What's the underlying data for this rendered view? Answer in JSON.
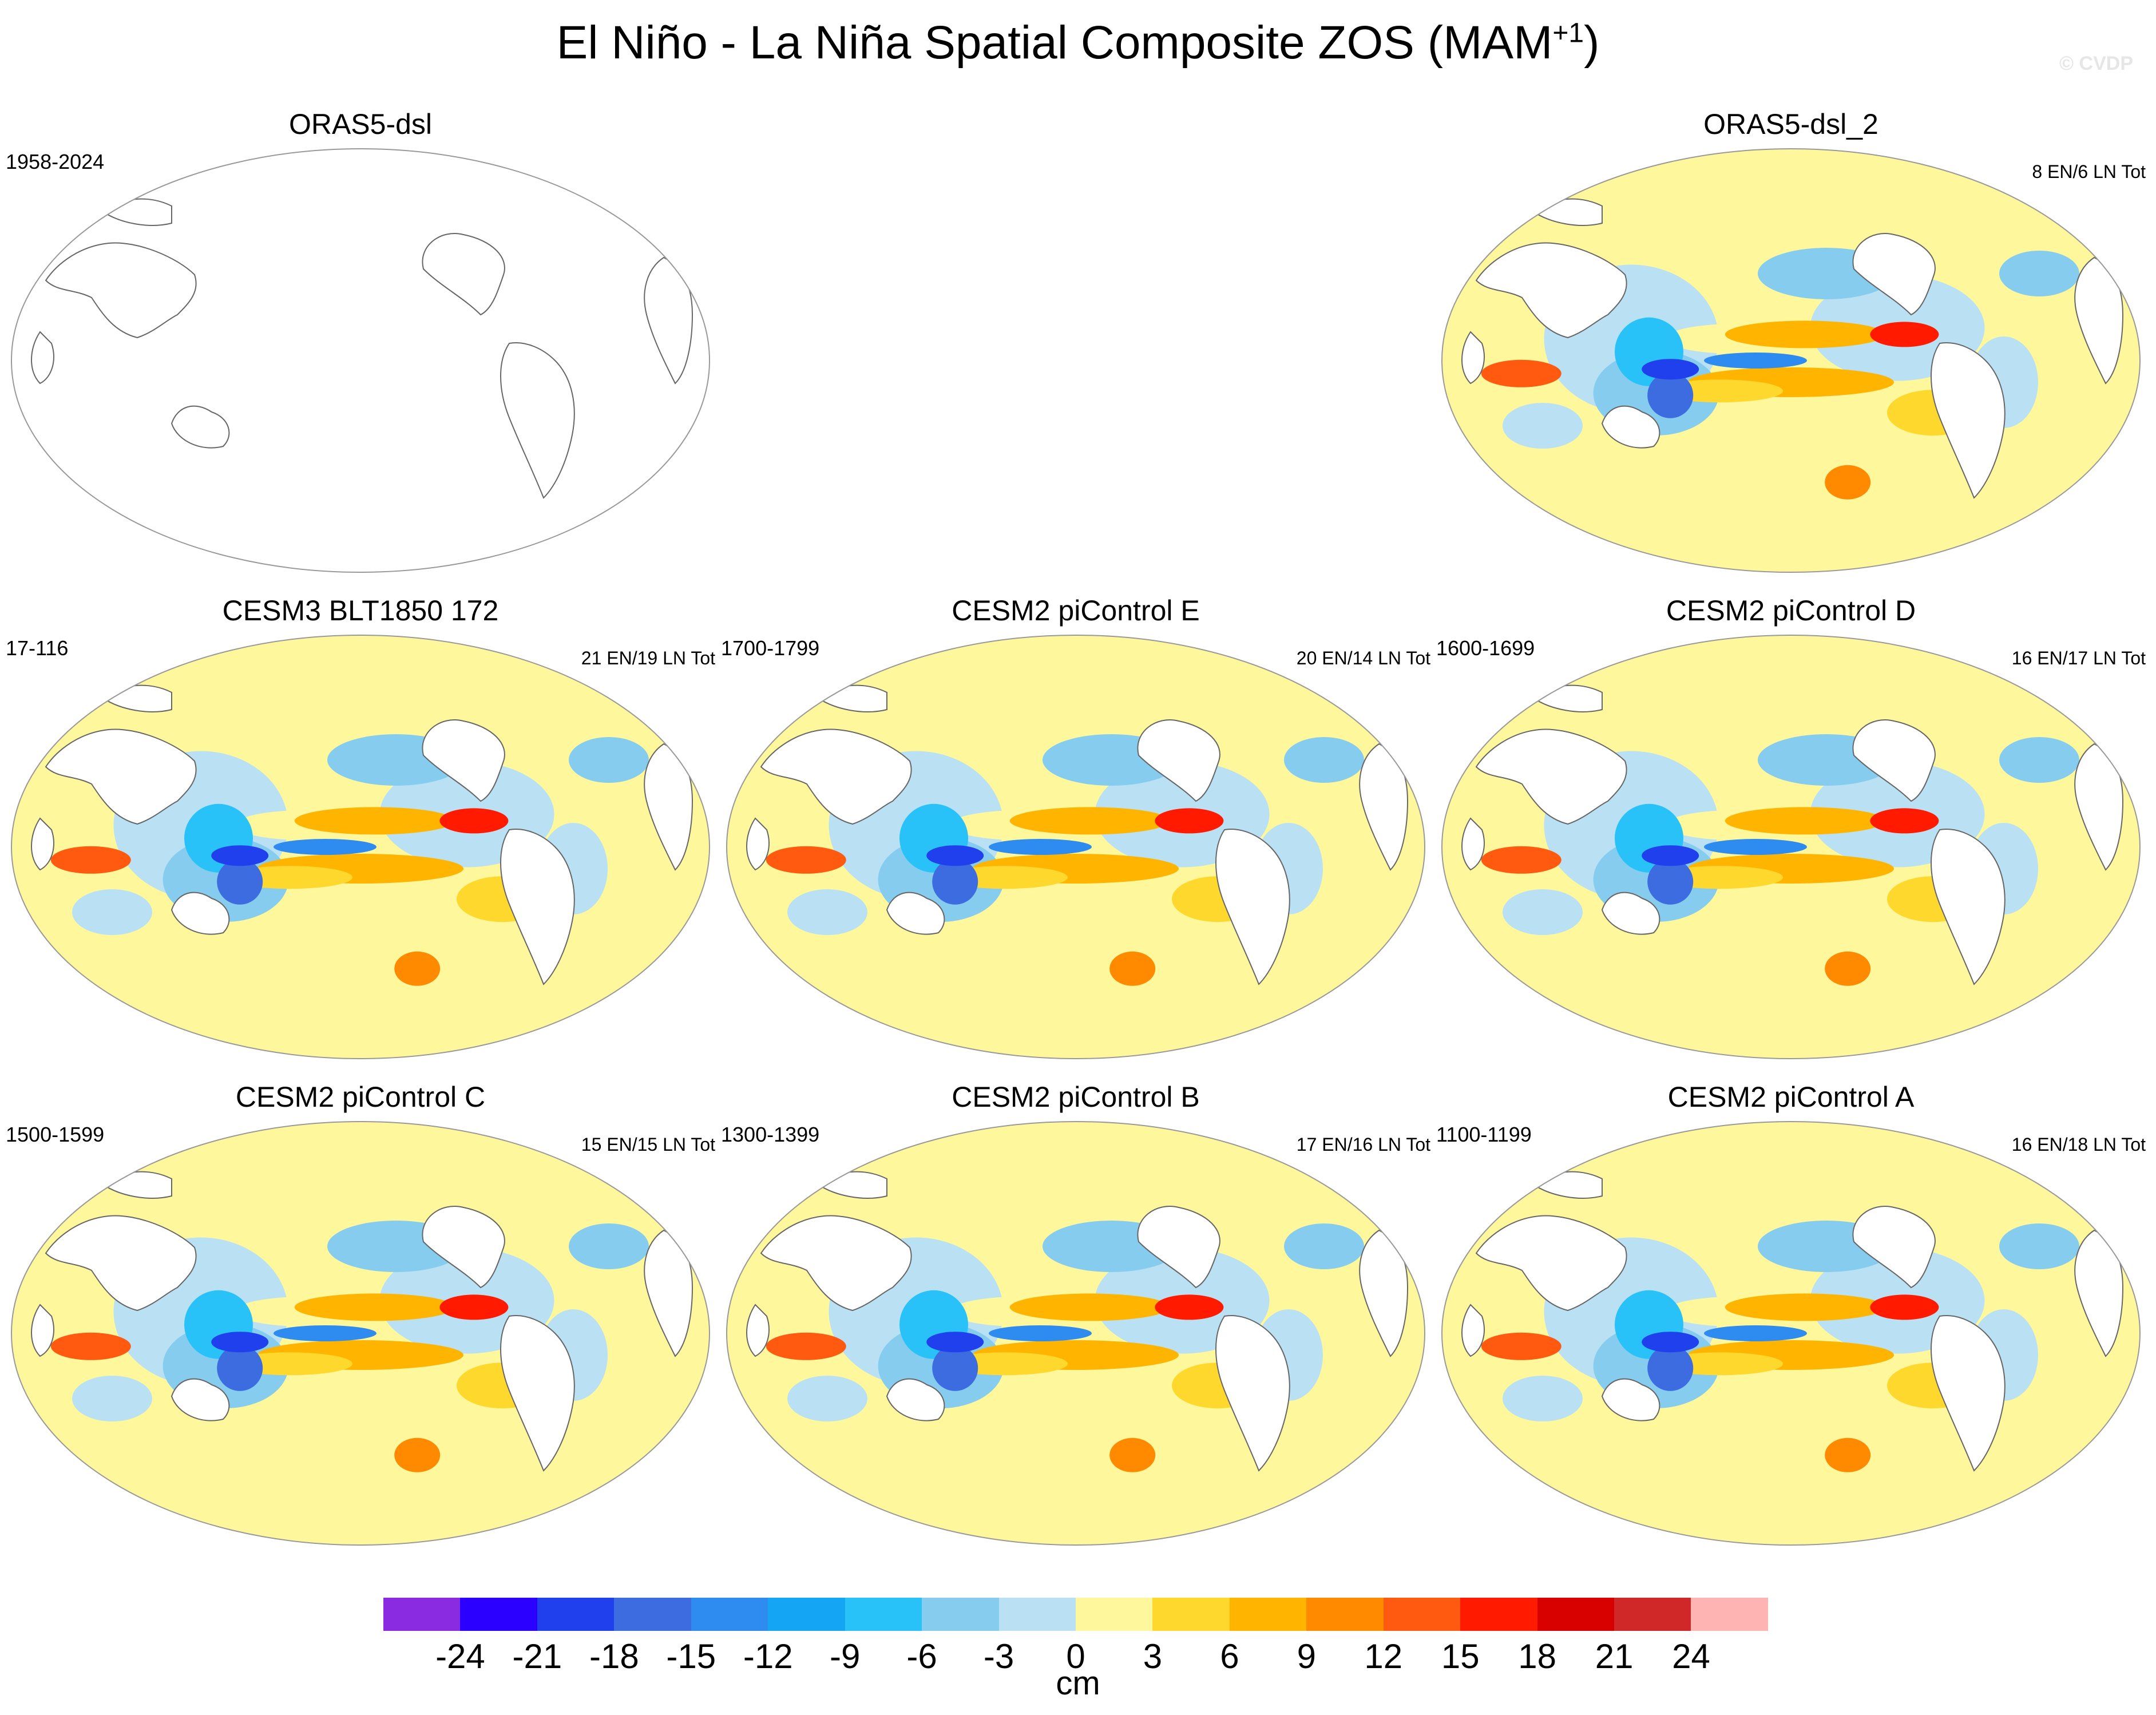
{
  "title": "El Niño - La Niña Spatial Composite ZOS (MAM",
  "title_sup": "+1",
  "title_close": ")",
  "watermark": "© CVDP",
  "panels": [
    {
      "title": "ORAS5-dsl",
      "left_label": "1958-2024",
      "right_label": "",
      "filled": false
    },
    {
      "title": "ORAS5-dsl_2",
      "left_label": "",
      "right_label": "8 EN/6 LN Tot",
      "filled": true
    },
    {
      "title": "CESM3 BLT1850 172",
      "left_label": "17-116",
      "right_label": "21 EN/19 LN Tot",
      "filled": true
    },
    {
      "title": "CESM2 piControl E",
      "left_label": "1700-1799",
      "right_label": "20 EN/14 LN Tot",
      "filled": true
    },
    {
      "title": "CESM2 piControl D",
      "left_label": "1600-1699",
      "right_label": "16 EN/17 LN Tot",
      "filled": true
    },
    {
      "title": "CESM2 piControl C",
      "left_label": "1500-1599",
      "right_label": "15 EN/15 LN Tot",
      "filled": true
    },
    {
      "title": "CESM2 piControl B",
      "left_label": "1300-1399",
      "right_label": "17 EN/16 LN Tot",
      "filled": true
    },
    {
      "title": "CESM2 piControl A",
      "left_label": "1100-1199",
      "right_label": "16 EN/18 LN Tot",
      "filled": true
    }
  ],
  "colorbar": {
    "colors": [
      "#8a2be2",
      "#2b00ff",
      "#2040ee",
      "#3c6ce0",
      "#2e8bf0",
      "#14a5f5",
      "#28c2f8",
      "#86ccef",
      "#b9e1f3",
      "#fff79b",
      "#ffd82e",
      "#ffb400",
      "#ff8a00",
      "#ff5a10",
      "#ff1a00",
      "#d90000",
      "#d02828",
      "#ffb4b4"
    ],
    "ticks": [
      "-24",
      "-21",
      "-18",
      "-15",
      "-12",
      "-9",
      "-6",
      "-3",
      "0",
      "3",
      "6",
      "9",
      "12",
      "15",
      "18",
      "21",
      "24"
    ],
    "units": "cm"
  }
}
